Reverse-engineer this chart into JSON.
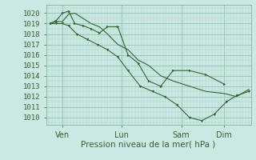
{
  "bg_color": "#cce8e2",
  "grid_major_color": "#88bbaa",
  "grid_minor_color": "#aad4c8",
  "line_color": "#336633",
  "xlabel": "Pression niveau de la mer( hPa )",
  "ylim": [
    1009.3,
    1020.8
  ],
  "yticks": [
    1010,
    1011,
    1012,
    1013,
    1014,
    1015,
    1016,
    1017,
    1018,
    1019,
    1020
  ],
  "xtick_labels": [
    "Ven",
    "Lun",
    "Sam",
    "Dim"
  ],
  "xtick_positions": [
    0.08,
    0.37,
    0.66,
    0.87
  ],
  "xlim": [
    0.0,
    1.0
  ],
  "line1_x": [
    0.02,
    0.05,
    0.08,
    0.11,
    0.14,
    0.18,
    0.22,
    0.26,
    0.3,
    0.35,
    0.4,
    0.45,
    0.5,
    0.56,
    0.62,
    0.7,
    0.78,
    0.87,
    0.93,
    0.99
  ],
  "line1_y": [
    1019.0,
    1019.2,
    1019.2,
    1019.9,
    1020.0,
    1019.5,
    1019.0,
    1018.7,
    1018.0,
    1017.0,
    1016.5,
    1015.5,
    1015.0,
    1014.0,
    1013.5,
    1013.0,
    1012.5,
    1012.3,
    1012.0,
    1012.7
  ],
  "line2_x": [
    0.02,
    0.05,
    0.08,
    0.11,
    0.14,
    0.18,
    0.22,
    0.26,
    0.3,
    0.35,
    0.4,
    0.45,
    0.5,
    0.56,
    0.62,
    0.7,
    0.78,
    0.87
  ],
  "line2_y": [
    1019.0,
    1019.3,
    1020.0,
    1020.2,
    1019.0,
    1018.8,
    1018.5,
    1018.1,
    1018.7,
    1018.7,
    1016.0,
    1015.2,
    1013.5,
    1013.0,
    1014.5,
    1014.5,
    1014.1,
    1013.2
  ],
  "line3_x": [
    0.02,
    0.05,
    0.08,
    0.11,
    0.15,
    0.2,
    0.25,
    0.3,
    0.35,
    0.4,
    0.46,
    0.52,
    0.58,
    0.64,
    0.7,
    0.76,
    0.82,
    0.88,
    0.93,
    0.99
  ],
  "line3_y": [
    1019.0,
    1019.0,
    1019.0,
    1018.8,
    1018.0,
    1017.5,
    1017.0,
    1016.5,
    1015.8,
    1014.5,
    1013.0,
    1012.5,
    1012.0,
    1011.2,
    1010.0,
    1009.7,
    1010.3,
    1011.5,
    1012.1,
    1012.5
  ]
}
